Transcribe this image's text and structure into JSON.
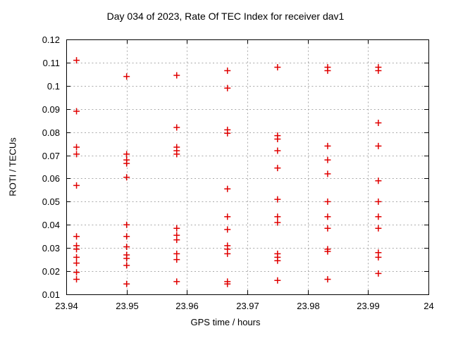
{
  "chart_data": {
    "type": "scatter",
    "title": "Day 034 of 2023, Rate Of TEC Index for receiver dav1",
    "xlabel": "GPS time / hours",
    "ylabel": "ROTI / TECUs",
    "xlim": [
      23.94,
      24
    ],
    "ylim": [
      0.01,
      0.12
    ],
    "grid": true,
    "legend": "none",
    "marker": "plus",
    "marker_color": "#e00000",
    "grid_color": "#aaaaaa",
    "axis_color": "#000000",
    "x_ticks": [
      {
        "v": 23.94,
        "label": "23.94"
      },
      {
        "v": 23.95,
        "label": "23.95"
      },
      {
        "v": 23.96,
        "label": "23.96"
      },
      {
        "v": 23.97,
        "label": "23.97"
      },
      {
        "v": 23.98,
        "label": "23.98"
      },
      {
        "v": 23.99,
        "label": "23.99"
      },
      {
        "v": 24,
        "label": "24"
      }
    ],
    "y_ticks": [
      {
        "v": 0.01,
        "label": "0.01"
      },
      {
        "v": 0.02,
        "label": "0.02"
      },
      {
        "v": 0.03,
        "label": "0.03"
      },
      {
        "v": 0.04,
        "label": "0.04"
      },
      {
        "v": 0.05,
        "label": "0.05"
      },
      {
        "v": 0.06,
        "label": "0.06"
      },
      {
        "v": 0.07,
        "label": "0.07"
      },
      {
        "v": 0.08,
        "label": "0.08"
      },
      {
        "v": 0.09,
        "label": "0.09"
      },
      {
        "v": 0.1,
        "label": "0.1"
      },
      {
        "v": 0.11,
        "label": "0.11"
      },
      {
        "v": 0.12,
        "label": "0.12"
      }
    ],
    "series": [
      {
        "name": "ROTI",
        "points": [
          [
            23.9417,
            0.111
          ],
          [
            23.9417,
            0.089
          ],
          [
            23.9417,
            0.0735
          ],
          [
            23.9417,
            0.0705
          ],
          [
            23.9417,
            0.057
          ],
          [
            23.9417,
            0.035
          ],
          [
            23.9417,
            0.031
          ],
          [
            23.9417,
            0.0295
          ],
          [
            23.9417,
            0.026
          ],
          [
            23.9417,
            0.0235
          ],
          [
            23.9417,
            0.0195
          ],
          [
            23.9417,
            0.0165
          ],
          [
            23.95,
            0.104
          ],
          [
            23.95,
            0.0705
          ],
          [
            23.95,
            0.068
          ],
          [
            23.95,
            0.0665
          ],
          [
            23.95,
            0.0605
          ],
          [
            23.95,
            0.04
          ],
          [
            23.95,
            0.035
          ],
          [
            23.95,
            0.0305
          ],
          [
            23.95,
            0.027
          ],
          [
            23.95,
            0.0255
          ],
          [
            23.95,
            0.0225
          ],
          [
            23.95,
            0.0145
          ],
          [
            23.9583,
            0.1045
          ],
          [
            23.9583,
            0.082
          ],
          [
            23.9583,
            0.0735
          ],
          [
            23.9583,
            0.072
          ],
          [
            23.9583,
            0.0705
          ],
          [
            23.9583,
            0.0385
          ],
          [
            23.9583,
            0.0355
          ],
          [
            23.9583,
            0.0335
          ],
          [
            23.9583,
            0.0275
          ],
          [
            23.9583,
            0.025
          ],
          [
            23.9583,
            0.0155
          ],
          [
            23.9667,
            0.1065
          ],
          [
            23.9667,
            0.099
          ],
          [
            23.9667,
            0.081
          ],
          [
            23.9667,
            0.0795
          ],
          [
            23.9667,
            0.0555
          ],
          [
            23.9667,
            0.0435
          ],
          [
            23.9667,
            0.038
          ],
          [
            23.9667,
            0.031
          ],
          [
            23.9667,
            0.0295
          ],
          [
            23.9667,
            0.0275
          ],
          [
            23.9667,
            0.0155
          ],
          [
            23.9667,
            0.0145
          ],
          [
            23.975,
            0.108
          ],
          [
            23.975,
            0.0785
          ],
          [
            23.975,
            0.077
          ],
          [
            23.975,
            0.072
          ],
          [
            23.975,
            0.0645
          ],
          [
            23.975,
            0.051
          ],
          [
            23.975,
            0.0435
          ],
          [
            23.975,
            0.041
          ],
          [
            23.975,
            0.0275
          ],
          [
            23.975,
            0.026
          ],
          [
            23.975,
            0.0245
          ],
          [
            23.975,
            0.016
          ],
          [
            23.9833,
            0.108
          ],
          [
            23.9833,
            0.1065
          ],
          [
            23.9833,
            0.074
          ],
          [
            23.9833,
            0.068
          ],
          [
            23.9833,
            0.062
          ],
          [
            23.9833,
            0.05
          ],
          [
            23.9833,
            0.0435
          ],
          [
            23.9833,
            0.0385
          ],
          [
            23.9833,
            0.0295
          ],
          [
            23.9833,
            0.0285
          ],
          [
            23.9833,
            0.0165
          ],
          [
            23.9917,
            0.108
          ],
          [
            23.9917,
            0.1065
          ],
          [
            23.9917,
            0.084
          ],
          [
            23.9917,
            0.074
          ],
          [
            23.9917,
            0.059
          ],
          [
            23.9917,
            0.05
          ],
          [
            23.9917,
            0.0435
          ],
          [
            23.9917,
            0.0385
          ],
          [
            23.9917,
            0.028
          ],
          [
            23.9917,
            0.026
          ],
          [
            23.9917,
            0.019
          ]
        ]
      }
    ]
  }
}
